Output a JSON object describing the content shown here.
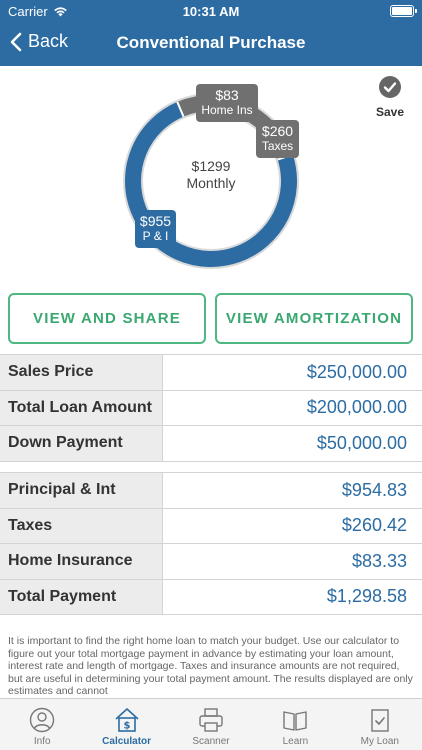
{
  "status": {
    "carrier": "Carrier",
    "time": "10:31 AM"
  },
  "nav": {
    "back_label": "Back",
    "title": "Conventional Purchase"
  },
  "save_label": "Save",
  "colors": {
    "primary": "#2c6ca3",
    "accent": "#4fb782",
    "segment_gray": "#707070"
  },
  "chart_data": {
    "type": "pie",
    "center_amount": "$1299",
    "center_label": "Monthly",
    "slices": [
      {
        "label": "P & I",
        "amount": "$955",
        "value": 954.83
      },
      {
        "label": "Taxes",
        "amount": "$260",
        "value": 260.42
      },
      {
        "label": "Home Ins",
        "amount": "$83",
        "value": 83.33
      }
    ]
  },
  "buttons": {
    "share": "VIEW AND SHARE",
    "amortization": "VIEW AMORTIZATION"
  },
  "loan_table": [
    {
      "label": "Sales Price",
      "value": "$250,000.00"
    },
    {
      "label": "Total Loan Amount",
      "value": "$200,000.00"
    },
    {
      "label": "Down Payment",
      "value": "$50,000.00"
    }
  ],
  "payment_table": [
    {
      "label": "Principal & Int",
      "value": "$954.83"
    },
    {
      "label": "Taxes",
      "value": "$260.42"
    },
    {
      "label": "Home Insurance",
      "value": "$83.33"
    },
    {
      "label": "Total Payment",
      "value": "$1,298.58"
    }
  ],
  "disclaimer": "It is important to find the right home loan to match your budget. Use our calculator to figure out your total mortgage payment in advance by estimating your loan amount, interest rate and length of mortgage. Taxes and insurance amounts are not required, but are useful in determining your total payment amount.  The results displayed are only estimates and cannot",
  "tabs": [
    {
      "label": "Info",
      "icon": "info-icon"
    },
    {
      "label": "Calculator",
      "icon": "calculator-icon",
      "active": true
    },
    {
      "label": "Scanner",
      "icon": "scanner-icon"
    },
    {
      "label": "Learn",
      "icon": "learn-icon"
    },
    {
      "label": "My Loan",
      "icon": "my-loan-icon"
    }
  ]
}
